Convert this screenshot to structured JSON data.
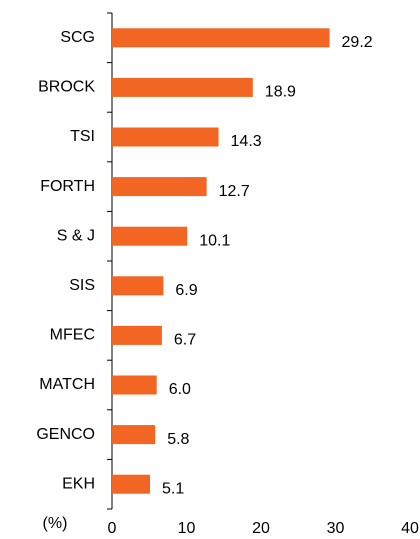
{
  "chart_data": {
    "type": "bar",
    "orientation": "horizontal",
    "categories": [
      "SCG",
      "BROCK",
      "TSI",
      "FORTH",
      "S & J",
      "SIS",
      "MFEC",
      "MATCH",
      "GENCO",
      "EKH"
    ],
    "values": [
      29.2,
      18.9,
      14.3,
      12.7,
      10.1,
      6.9,
      6.7,
      6.0,
      5.8,
      5.1
    ],
    "value_labels": [
      "29.2",
      "18.9",
      "14.3",
      "12.7",
      "10.1",
      "6.9",
      "6.7",
      "6.0",
      "5.8",
      "5.1"
    ],
    "color": "#f26522",
    "xlabel": "(%)",
    "xlim": [
      0,
      40
    ],
    "xticks": [
      0,
      10,
      20,
      30,
      40
    ],
    "grid": false
  }
}
